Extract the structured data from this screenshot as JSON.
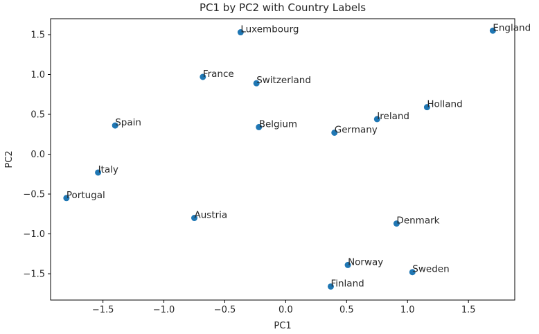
{
  "chart_data": {
    "type": "scatter",
    "title": "PC1 by PC2 with Country Labels",
    "xlabel": "PC1",
    "ylabel": "PC2",
    "xlim": [
      -1.93,
      1.88
    ],
    "ylim": [
      -1.83,
      1.7
    ],
    "xticks": [
      -1.5,
      -1.0,
      -0.5,
      0.0,
      0.5,
      1.0,
      1.5
    ],
    "xtick_labels": [
      "−1.5",
      "−1.0",
      "−0.5",
      "0.0",
      "0.5",
      "1.0",
      "1.5"
    ],
    "yticks": [
      1.5,
      1.0,
      0.5,
      0.0,
      -0.5,
      -1.0,
      -1.5
    ],
    "ytick_labels": [
      "1.5",
      "1.0",
      "0.5",
      "0.0",
      "−0.5",
      "−1.0",
      "−1.5"
    ],
    "grid": false,
    "marker_color": "#1f77b4",
    "points": [
      {
        "label": "England",
        "x": 1.7,
        "y": 1.55
      },
      {
        "label": "Luxembourg",
        "x": -0.37,
        "y": 1.53
      },
      {
        "label": "France",
        "x": -0.68,
        "y": 0.97
      },
      {
        "label": "Switzerland",
        "x": -0.24,
        "y": 0.89
      },
      {
        "label": "Holland",
        "x": 1.16,
        "y": 0.59
      },
      {
        "label": "Ireland",
        "x": 0.75,
        "y": 0.44
      },
      {
        "label": "Spain",
        "x": -1.4,
        "y": 0.36
      },
      {
        "label": "Belgium",
        "x": -0.22,
        "y": 0.34
      },
      {
        "label": "Germany",
        "x": 0.4,
        "y": 0.27
      },
      {
        "label": "Italy",
        "x": -1.54,
        "y": -0.23
      },
      {
        "label": "Portugal",
        "x": -1.8,
        "y": -0.55
      },
      {
        "label": "Austria",
        "x": -0.75,
        "y": -0.8
      },
      {
        "label": "Denmark",
        "x": 0.91,
        "y": -0.87
      },
      {
        "label": "Norway",
        "x": 0.51,
        "y": -1.39
      },
      {
        "label": "Sweden",
        "x": 1.04,
        "y": -1.48
      },
      {
        "label": "Finland",
        "x": 0.37,
        "y": -1.66
      }
    ]
  }
}
